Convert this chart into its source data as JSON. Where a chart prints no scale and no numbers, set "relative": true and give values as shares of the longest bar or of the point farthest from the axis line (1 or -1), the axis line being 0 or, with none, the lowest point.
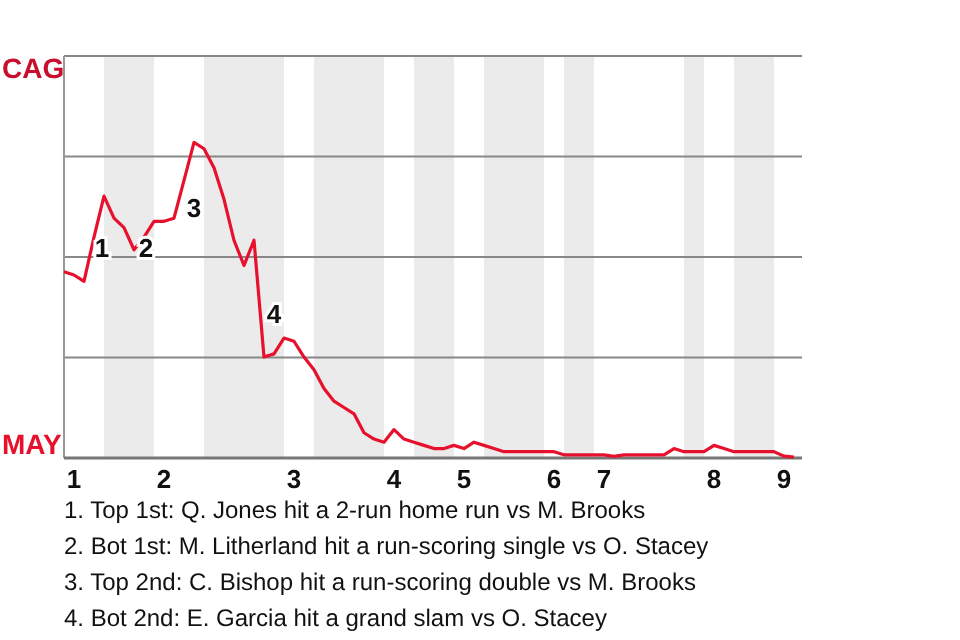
{
  "chart_data": {
    "type": "line",
    "relative": true,
    "categories": [
      null,
      "1",
      null,
      null,
      null,
      null,
      null,
      null,
      null,
      null,
      "2",
      null,
      null,
      null,
      null,
      null,
      null,
      null,
      null,
      null,
      null,
      null,
      null,
      "3",
      null,
      null,
      null,
      null,
      null,
      null,
      null,
      null,
      null,
      "4",
      null,
      null,
      null,
      null,
      null,
      null,
      "5",
      null,
      null,
      null,
      null,
      null,
      null,
      null,
      null,
      "6",
      null,
      null,
      null,
      null,
      "7",
      null,
      null,
      null,
      null,
      null,
      null,
      null,
      null,
      null,
      null,
      "8",
      null,
      null,
      null,
      null,
      null,
      null,
      "9",
      null
    ],
    "series": [
      {
        "color": "#e8112d",
        "values": [
          0.59,
          0.58,
          0.56,
          0.7,
          0.83,
          0.76,
          0.73,
          0.66,
          0.7,
          0.75,
          0.75,
          0.76,
          0.88,
          1,
          0.98,
          0.92,
          0.82,
          0.69,
          0.61,
          0.69,
          0.32,
          0.33,
          0.38,
          0.37,
          0.32,
          0.28,
          0.22,
          0.18,
          0.16,
          0.14,
          0.08,
          0.06,
          0.05,
          0.09,
          0.06,
          0.05,
          0.04,
          0.03,
          0.03,
          0.04,
          0.03,
          0.05,
          0.04,
          0.03,
          0.02,
          0.02,
          0.02,
          0.02,
          0.02,
          0.02,
          0.01,
          0.01,
          0.01,
          0.01,
          0.01,
          0.005,
          0.01,
          0.01,
          0.01,
          0.01,
          0.01,
          0.03,
          0.02,
          0.02,
          0.02,
          0.04,
          0.03,
          0.02,
          0.02,
          0.02,
          0.02,
          0.02,
          0.006,
          0.003
        ]
      }
    ],
    "grid": "y",
    "marker": "none",
    "line_style": "solid",
    "annotations": [
      "CAG",
      "MAY",
      "1",
      "2",
      "3",
      "4",
      "1. Top 1st: Q. Jones hit a 2-run home run vs M. Brooks",
      "2. Bot 1st: M. Litherland hit a run-scoring single vs O. Stacey",
      "3. Top 2nd: C. Bishop hit a run-scoring double vs M. Brooks",
      "4. Bot 2nd: E. Garcia hit a grand slam vs O. Stacey"
    ]
  }
}
